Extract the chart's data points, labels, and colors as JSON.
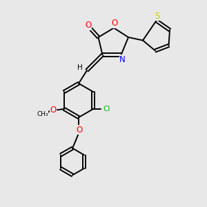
{
  "bg_color": "#e8e8e8",
  "bond_color": "#000000",
  "atom_colors": {
    "O": "#ff0000",
    "N": "#0000ff",
    "S": "#cccc00",
    "Cl": "#00bb00",
    "H": "#000000",
    "C": "#000000"
  },
  "figsize": [
    3.0,
    3.0
  ],
  "dpi": 100
}
